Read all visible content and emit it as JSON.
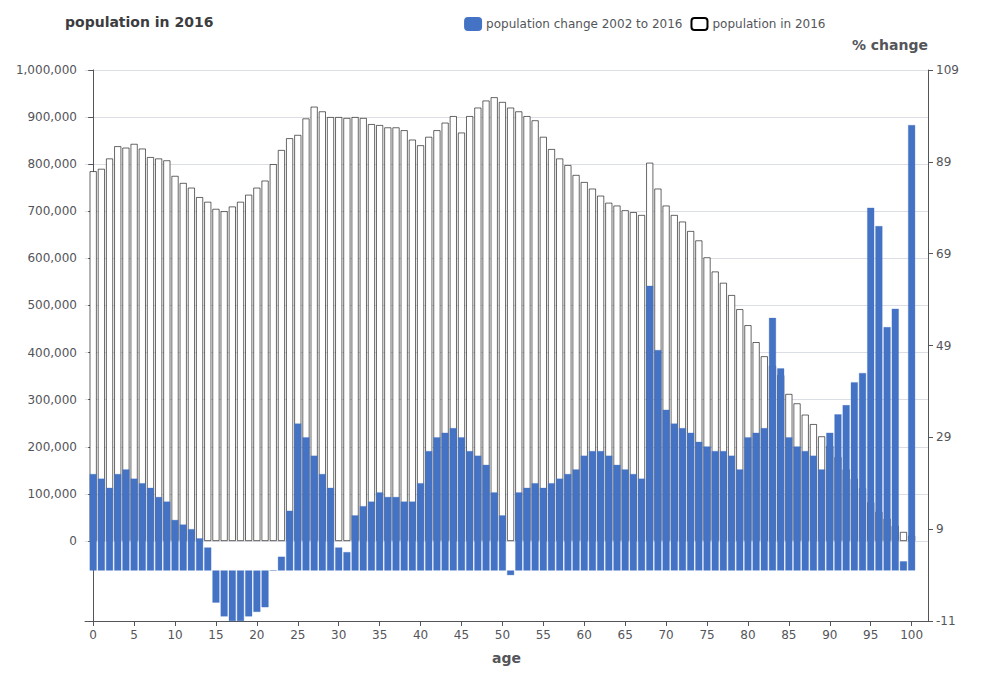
{
  "chart_data": {
    "type": "bar",
    "title": "population in 2016",
    "xlabel": "age",
    "y2label": "% change",
    "x": [
      0,
      1,
      2,
      3,
      4,
      5,
      6,
      7,
      8,
      9,
      10,
      11,
      12,
      13,
      14,
      15,
      16,
      17,
      18,
      19,
      20,
      21,
      22,
      23,
      24,
      25,
      26,
      27,
      28,
      29,
      30,
      31,
      32,
      33,
      34,
      35,
      36,
      37,
      38,
      39,
      40,
      41,
      42,
      43,
      44,
      45,
      46,
      47,
      48,
      49,
      50,
      51,
      52,
      53,
      54,
      55,
      56,
      57,
      58,
      59,
      60,
      61,
      62,
      63,
      64,
      65,
      66,
      67,
      68,
      69,
      70,
      71,
      72,
      73,
      74,
      75,
      76,
      77,
      78,
      79,
      80,
      81,
      82,
      83,
      84,
      85,
      86,
      87,
      88,
      89,
      90,
      91,
      92,
      93,
      94,
      95,
      96,
      97,
      98,
      99,
      100
    ],
    "series": [
      {
        "name": "population in 2016",
        "color": "#ffffff",
        "values": [
          785000,
          790000,
          812000,
          838000,
          835000,
          843000,
          833000,
          815000,
          812000,
          808000,
          775000,
          760000,
          750000,
          730000,
          720000,
          705000,
          700000,
          710000,
          720000,
          735000,
          750000,
          765000,
          800000,
          830000,
          855000,
          862000,
          897000,
          922000,
          912000,
          900000,
          900000,
          898000,
          900000,
          898000,
          885000,
          883000,
          878000,
          878000,
          872000,
          852000,
          840000,
          858000,
          872000,
          888000,
          902000,
          867000,
          902000,
          920000,
          935000,
          942000,
          932000,
          920000,
          912000,
          902000,
          893000,
          858000,
          832000,
          812000,
          798000,
          777000,
          762000,
          748000,
          733000,
          718000,
          712000,
          702000,
          698000,
          692000,
          803000,
          748000,
          712000,
          692000,
          678000,
          658000,
          638000,
          602000,
          572000,
          548000,
          522000,
          492000,
          458000,
          422000,
          392000,
          372000,
          352000,
          312000,
          292000,
          268000,
          248000,
          222000,
          202000,
          178000,
          152000,
          132000,
          112000,
          82000,
          62000,
          47000,
          32000,
          19000,
          11000
        ]
      },
      {
        "name": "population change 2002 to 2016",
        "color": "#4472C4",
        "axis": "y2",
        "values": [
          21,
          20,
          18,
          21,
          22,
          20,
          19,
          18,
          16,
          15,
          11,
          10,
          9,
          7,
          5,
          -7,
          -10,
          -11,
          -11,
          -10,
          -9,
          -8,
          0,
          3,
          13,
          32,
          29,
          25,
          21,
          18,
          5,
          4,
          12,
          14,
          15,
          17,
          16,
          16,
          15,
          15,
          19,
          26,
          29,
          30,
          31,
          29,
          26,
          25,
          23,
          17,
          12,
          -1,
          17,
          18,
          19,
          18,
          19,
          20,
          21,
          22,
          25,
          26,
          26,
          25,
          23,
          22,
          21,
          20,
          62,
          48,
          35,
          32,
          31,
          30,
          28,
          27,
          26,
          26,
          25,
          22,
          29,
          30,
          31,
          55,
          44,
          29,
          27,
          26,
          25,
          22,
          30,
          34,
          36,
          41,
          43,
          79,
          75,
          53,
          57,
          2,
          97
        ]
      }
    ],
    "xlim": [
      -1,
      102
    ],
    "xticks": [
      0,
      5,
      10,
      15,
      20,
      25,
      30,
      35,
      40,
      45,
      50,
      55,
      60,
      65,
      70,
      75,
      80,
      85,
      90,
      95,
      100
    ],
    "ylim": [
      -170000,
      1000000
    ],
    "yticks": [
      0,
      {
        "value": 100000,
        "label": "100,000"
      },
      {
        "value": 200000,
        "label": "200,000"
      },
      {
        "value": 300000,
        "label": "300,000"
      },
      {
        "value": 400000,
        "label": "400,000"
      },
      {
        "value": 500000,
        "label": "500,000"
      },
      {
        "value": 600000,
        "label": "600,000"
      },
      {
        "value": 700000,
        "label": "700,000"
      },
      {
        "value": 800000,
        "label": "800,000"
      },
      {
        "value": 900000,
        "label": "900,000"
      },
      {
        "value": 1000000,
        "label": "1,000,000"
      }
    ],
    "y2lim": [
      -11,
      109
    ],
    "y2ticks": [
      -11,
      9,
      29,
      49,
      69,
      89,
      109
    ],
    "grid": true
  }
}
